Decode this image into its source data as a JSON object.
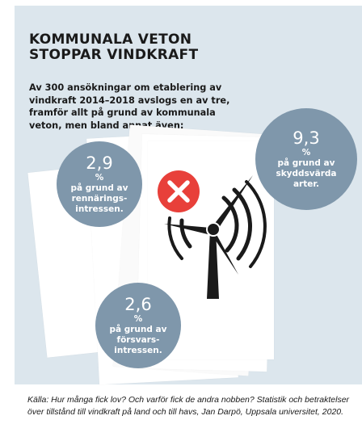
{
  "title": "KOMMUNALA VETON\nSTOPPAR VINDKRAFT",
  "intro": "Av 300 ansökningar om etablering av vindkraft 2014–2018 avslogs en av tre, framför allt på grund av kommunala veton, men bland annat även:",
  "bubbles": [
    {
      "value": "2,9",
      "unit": "%",
      "label": "på grund av\nrennärings-\nintressen."
    },
    {
      "value": "9,3",
      "unit": "%",
      "label": "på grund av\nskyddsvärda\narter."
    },
    {
      "value": "2,6",
      "unit": "%",
      "label": "på grund av\nförsvars-\nintressen."
    }
  ],
  "icons": [
    "wind-turbine-icon",
    "red-x-icon"
  ],
  "colors": {
    "panel": "#dce6ed",
    "bubble": "#7f97ab",
    "cross": "#e8403a",
    "ink": "#1a1a1a"
  },
  "source": "Källa: Hur många fick lov? Och varför fick de andra nobben? Statistik och betraktelser över tillstånd till vindkraft på land och till havs, Jan Darpö, Uppsala universitet, 2020."
}
